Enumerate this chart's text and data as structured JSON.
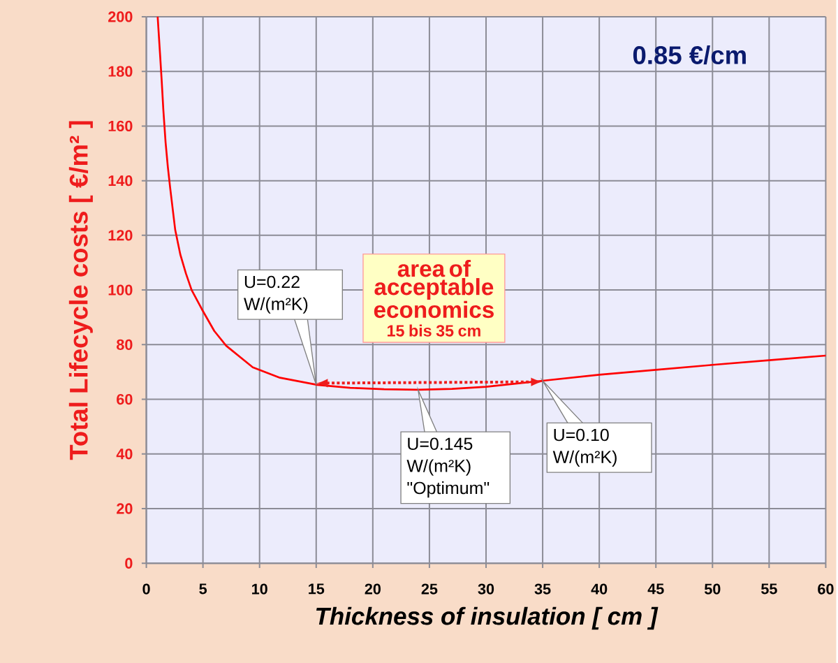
{
  "chart_data": {
    "type": "line",
    "title": "0.85 €/cm",
    "xlabel": "Thickness of insulation    [ cm ]",
    "ylabel": "Total Lifecycle costs   [ €/m² ]",
    "x": [
      1.0,
      1.2,
      1.35,
      1.5,
      1.7,
      1.9,
      2.1,
      2.55,
      3.0,
      3.5,
      4.0,
      4.9,
      6.0,
      7.05,
      9.4,
      11.8,
      15.1,
      18,
      21,
      24,
      27,
      30,
      35,
      40,
      45,
      50,
      55,
      60
    ],
    "series": [
      {
        "color": "#ff0000",
        "values": [
          200,
          187,
          177,
          166,
          154,
          145,
          137.5,
          122,
          113,
          106,
          100,
          93,
          85,
          79.6,
          71.7,
          67.9,
          65.3,
          64.2,
          63.7,
          63.5,
          63.8,
          64.6,
          66.8,
          69,
          70.8,
          72.6,
          74.3,
          76
        ]
      }
    ],
    "xlim": [
      0,
      60
    ],
    "ylim": [
      0,
      200
    ],
    "xticks": [
      0,
      5,
      10,
      15,
      20,
      25,
      30,
      35,
      40,
      45,
      50,
      55,
      60
    ],
    "yticks": [
      0,
      20,
      40,
      60,
      80,
      100,
      120,
      140,
      160,
      180,
      200
    ],
    "grid": true,
    "annotations": [
      {
        "text": "U=0.22 W/(m²K)",
        "x": 15,
        "y": 65.3
      },
      {
        "text": "U=0.145 W/(m²K) \"Optimum\"",
        "x": 24,
        "y": 63.5
      },
      {
        "text": "U=0.10 W/(m²K)",
        "x": 35,
        "y": 66.8
      },
      "area of acceptable economics",
      "15 bis 35 cm"
    ]
  }
}
